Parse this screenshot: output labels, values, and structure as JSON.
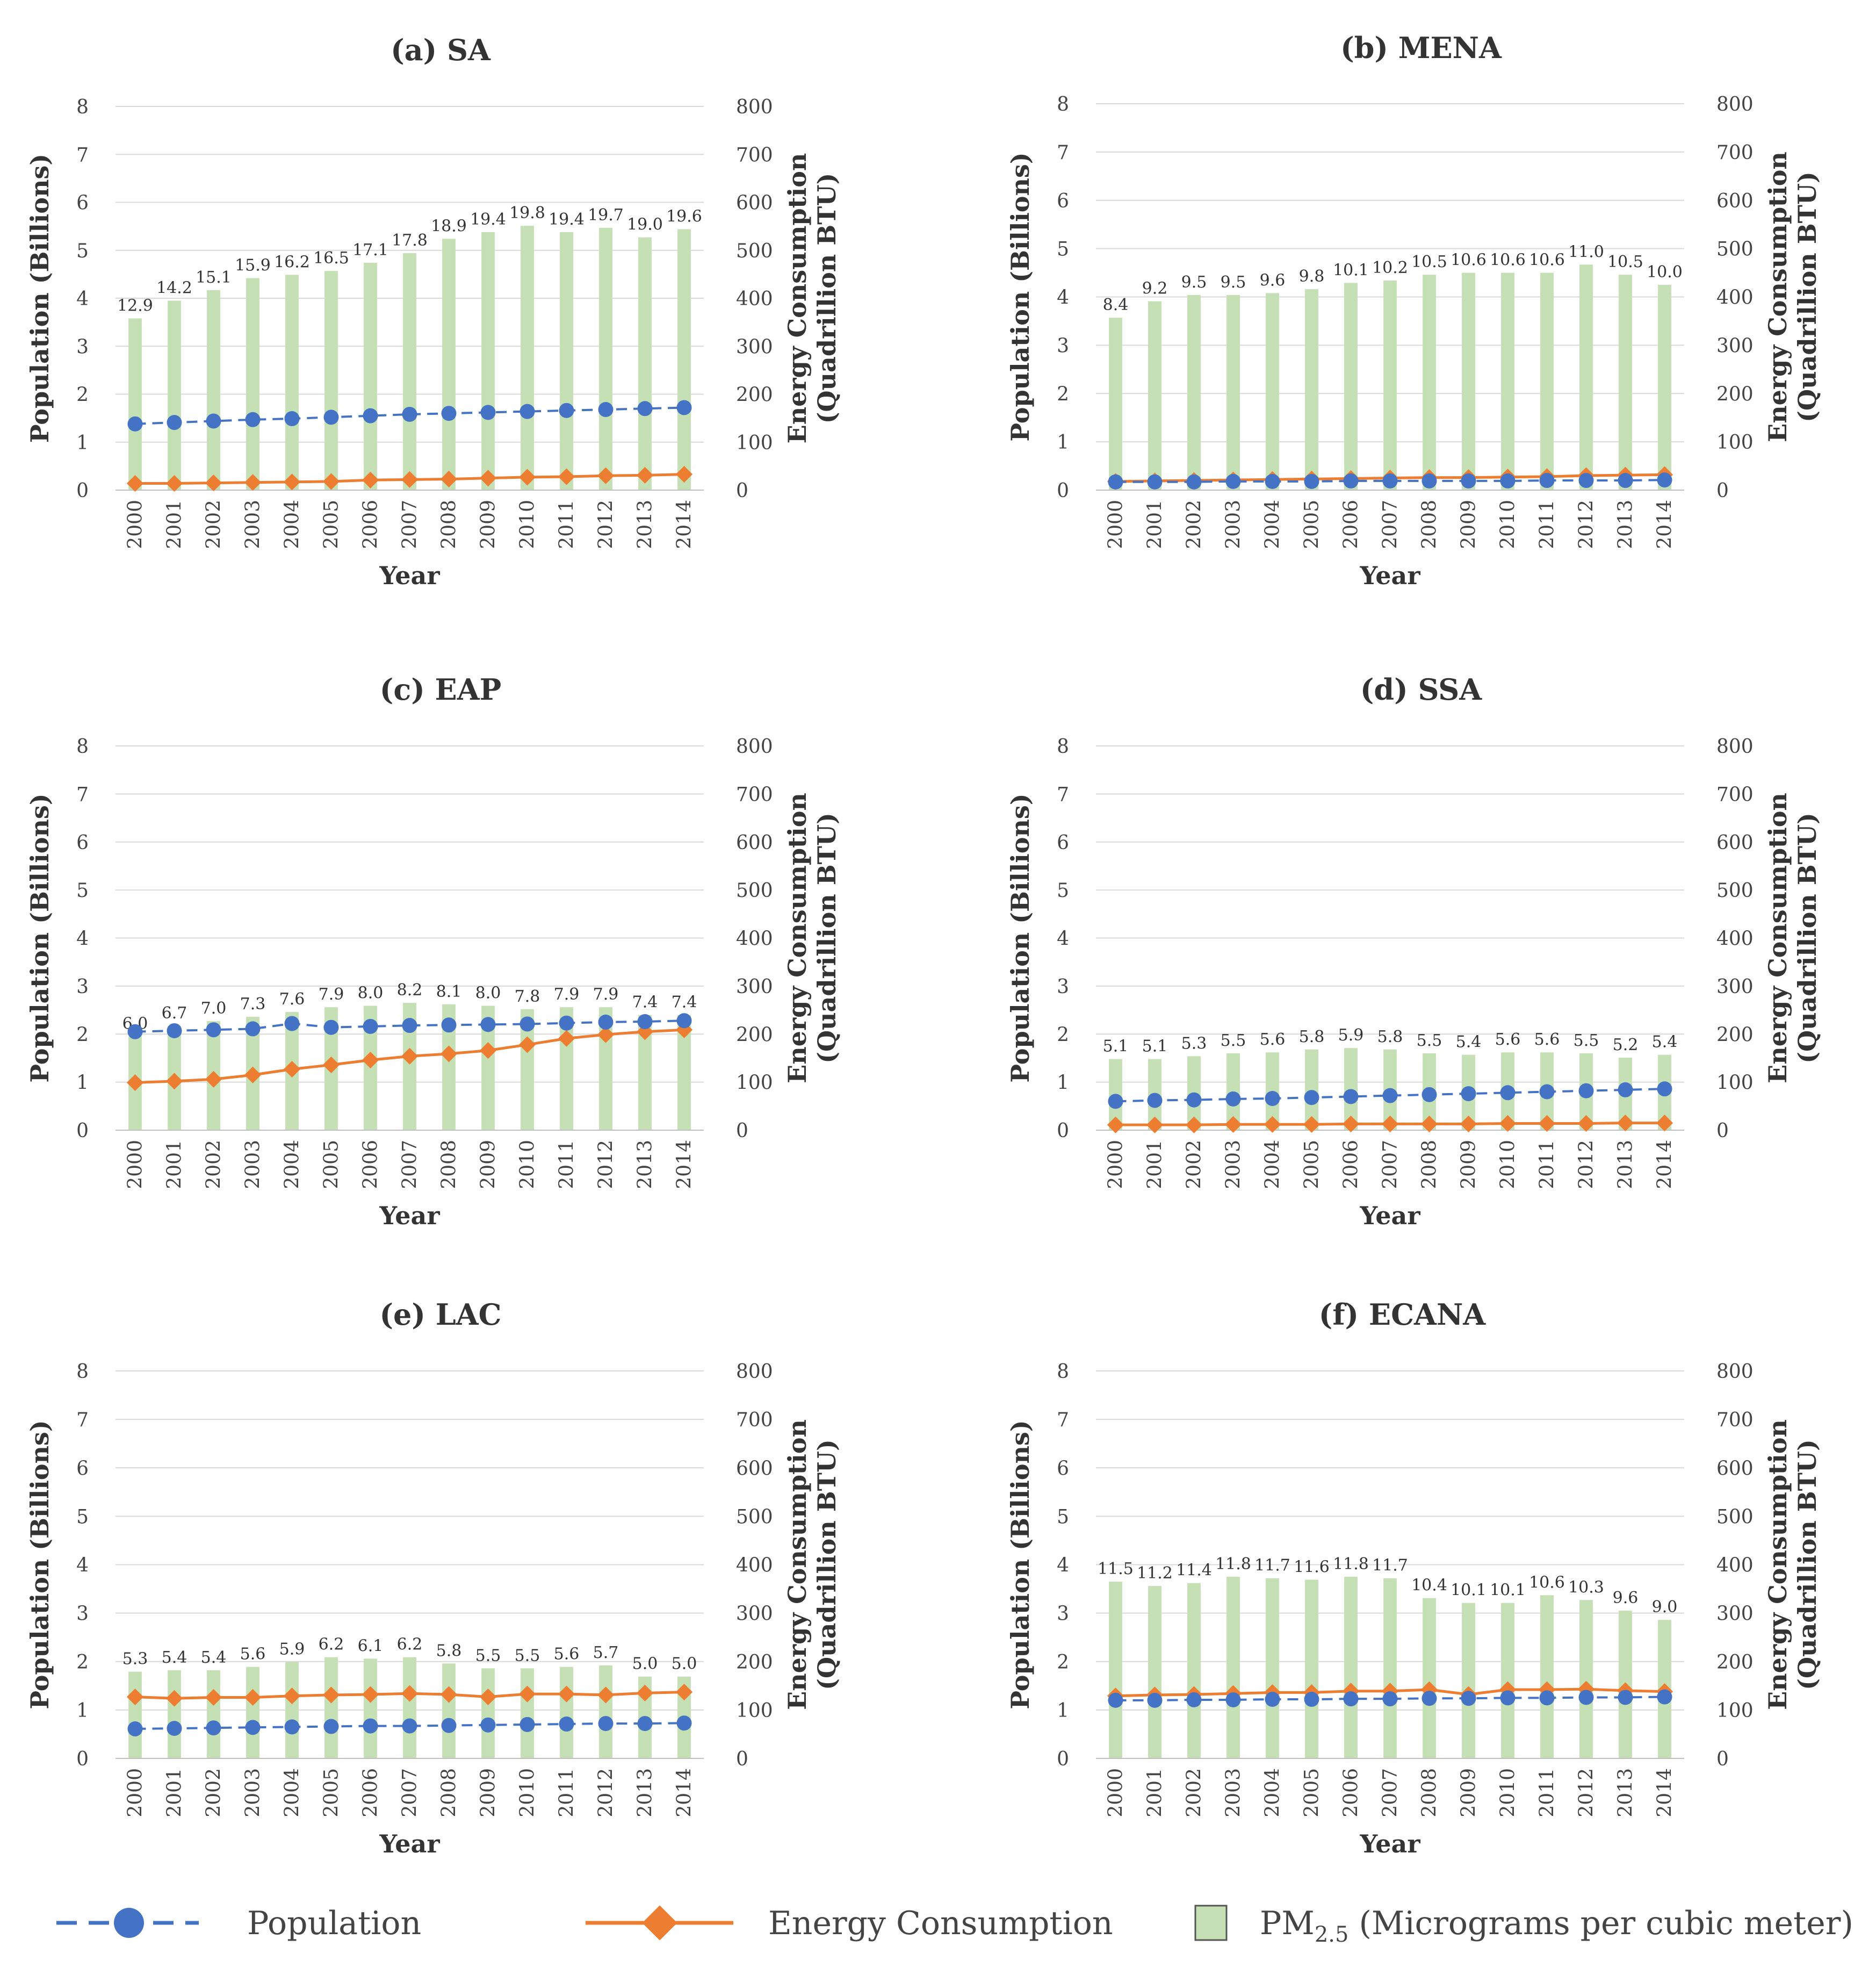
{
  "colors": {
    "population": "#4472C4",
    "energy": "#ED7D31",
    "pm25": "#C5E0B4"
  },
  "legend": {
    "population": "Population",
    "energy": "Energy Consumption",
    "pm_main": "PM",
    "pm_sub": "2.5",
    "pm_rest": " (Micrograms per cubic meter)"
  },
  "chart_data": [
    {
      "type": "bar",
      "title": "(a) SA",
      "xlabel": "Year",
      "ylabel": "Population (Billions)",
      "y2label_line1": "Energy Consumption",
      "y2label_line2": "(Quadrillion BTU)",
      "ylim": [
        0,
        8
      ],
      "y2lim": [
        0,
        800
      ],
      "yticks": [
        "0",
        "1",
        "2",
        "3",
        "4",
        "5",
        "6",
        "7",
        "8"
      ],
      "y2ticks": [
        "0",
        "100",
        "200",
        "300",
        "400",
        "500",
        "600",
        "700",
        "800"
      ],
      "categories": [
        "2000",
        "2001",
        "2002",
        "2003",
        "2004",
        "2005",
        "2006",
        "2007",
        "2008",
        "2009",
        "2010",
        "2011",
        "2012",
        "2013",
        "2014"
      ],
      "pm25_labels": [
        "12.9",
        "14.2",
        "15.1",
        "15.9",
        "16.2",
        "16.5",
        "17.1",
        "17.8",
        "18.9",
        "19.4",
        "19.8",
        "19.4",
        "19.7",
        "19.0",
        "19.6"
      ],
      "series": [
        {
          "name": "PM2.5",
          "values": [
            3.58,
            3.95,
            4.17,
            4.42,
            4.49,
            4.57,
            4.74,
            4.94,
            5.24,
            5.38,
            5.51,
            5.38,
            5.47,
            5.27,
            5.44
          ]
        },
        {
          "name": "Population",
          "values": [
            1.38,
            1.41,
            1.44,
            1.47,
            1.49,
            1.52,
            1.55,
            1.58,
            1.6,
            1.62,
            1.64,
            1.66,
            1.68,
            1.7,
            1.72
          ]
        },
        {
          "name": "Energy Consumption",
          "values": [
            14,
            14,
            15,
            16,
            17,
            18,
            21,
            22,
            23,
            25,
            27,
            28,
            30,
            31,
            33
          ]
        }
      ]
    },
    {
      "type": "bar",
      "title": "(b) MENA",
      "xlabel": "Year",
      "ylabel": "Population (Billions)",
      "y2label_line1": "Energy Consumption",
      "y2label_line2": "(Quadrillion BTU)",
      "ylim": [
        0,
        8
      ],
      "y2lim": [
        0,
        800
      ],
      "yticks": [
        "0",
        "1",
        "2",
        "3",
        "4",
        "5",
        "6",
        "7",
        "8"
      ],
      "y2ticks": [
        "0",
        "100",
        "200",
        "300",
        "400",
        "500",
        "600",
        "700",
        "800"
      ],
      "categories": [
        "2000",
        "2001",
        "2002",
        "2003",
        "2004",
        "2005",
        "2006",
        "2007",
        "2008",
        "2009",
        "2010",
        "2011",
        "2012",
        "2013",
        "2014"
      ],
      "pm25_labels": [
        "8.4",
        "9.2",
        "9.5",
        "9.5",
        "9.6",
        "9.8",
        "10.1",
        "10.2",
        "10.5",
        "10.6",
        "10.6",
        "10.6",
        "11.0",
        "10.5",
        "10.0"
      ],
      "series": [
        {
          "name": "PM2.5",
          "values": [
            3.57,
            3.91,
            4.04,
            4.04,
            4.08,
            4.16,
            4.29,
            4.34,
            4.46,
            4.5,
            4.5,
            4.5,
            4.67,
            4.46,
            4.25
          ]
        },
        {
          "name": "Population",
          "values": [
            0.17,
            0.17,
            0.17,
            0.18,
            0.18,
            0.18,
            0.19,
            0.19,
            0.19,
            0.19,
            0.19,
            0.2,
            0.2,
            0.2,
            0.21
          ]
        },
        {
          "name": "Energy Consumption",
          "values": [
            18,
            19,
            20,
            21,
            22,
            23,
            24,
            25,
            26,
            26,
            27,
            28,
            30,
            31,
            32
          ]
        }
      ]
    },
    {
      "type": "bar",
      "title": "(c) EAP",
      "xlabel": "Year",
      "ylabel": "Population (Billions)",
      "y2label_line1": "Energy Consumption",
      "y2label_line2": "(Quadrillion BTU)",
      "ylim": [
        0,
        8
      ],
      "y2lim": [
        0,
        800
      ],
      "yticks": [
        "0",
        "1",
        "2",
        "3",
        "4",
        "5",
        "6",
        "7",
        "8"
      ],
      "y2ticks": [
        "0",
        "100",
        "200",
        "300",
        "400",
        "500",
        "600",
        "700",
        "800"
      ],
      "categories": [
        "2000",
        "2001",
        "2002",
        "2003",
        "2004",
        "2005",
        "2006",
        "2007",
        "2008",
        "2009",
        "2010",
        "2011",
        "2012",
        "2013",
        "2014"
      ],
      "pm25_labels": [
        "6.0",
        "6.7",
        "7.0",
        "7.3",
        "7.6",
        "7.9",
        "8.0",
        "8.2",
        "8.1",
        "8.0",
        "7.8",
        "7.9",
        "7.9",
        "7.4",
        "7.4"
      ],
      "series": [
        {
          "name": "PM2.5",
          "values": [
            1.95,
            2.17,
            2.27,
            2.36,
            2.46,
            2.56,
            2.59,
            2.65,
            2.62,
            2.59,
            2.52,
            2.56,
            2.56,
            2.4,
            2.4
          ]
        },
        {
          "name": "Population",
          "values": [
            2.05,
            2.07,
            2.09,
            2.11,
            2.22,
            2.14,
            2.16,
            2.18,
            2.19,
            2.2,
            2.21,
            2.23,
            2.25,
            2.26,
            2.28
          ]
        },
        {
          "name": "Energy Consumption",
          "values": [
            99,
            102,
            106,
            115,
            127,
            136,
            146,
            154,
            159,
            166,
            178,
            191,
            199,
            205,
            209
          ]
        }
      ]
    },
    {
      "type": "bar",
      "title": "(d) SSA",
      "xlabel": "Year",
      "ylabel": "Population (Billions)",
      "y2label_line1": "Energy Consumption",
      "y2label_line2": "(Quadrillion BTU)",
      "ylim": [
        0,
        8
      ],
      "y2lim": [
        0,
        800
      ],
      "yticks": [
        "0",
        "1",
        "2",
        "3",
        "4",
        "5",
        "6",
        "7",
        "8"
      ],
      "y2ticks": [
        "0",
        "100",
        "200",
        "300",
        "400",
        "500",
        "600",
        "700",
        "800"
      ],
      "categories": [
        "2000",
        "2001",
        "2002",
        "2003",
        "2004",
        "2005",
        "2006",
        "2007",
        "2008",
        "2009",
        "2010",
        "2011",
        "2012",
        "2013",
        "2014"
      ],
      "pm25_labels": [
        "5.1",
        "5.1",
        "5.3",
        "5.5",
        "5.6",
        "5.8",
        "5.9",
        "5.8",
        "5.5",
        "5.4",
        "5.6",
        "5.6",
        "5.5",
        "5.2",
        "5.4"
      ],
      "series": [
        {
          "name": "PM2.5",
          "values": [
            1.48,
            1.48,
            1.54,
            1.6,
            1.62,
            1.68,
            1.71,
            1.68,
            1.6,
            1.57,
            1.62,
            1.62,
            1.6,
            1.51,
            1.57
          ]
        },
        {
          "name": "Population",
          "values": [
            0.6,
            0.62,
            0.63,
            0.65,
            0.66,
            0.68,
            0.7,
            0.72,
            0.74,
            0.76,
            0.78,
            0.8,
            0.82,
            0.84,
            0.86
          ]
        },
        {
          "name": "Energy Consumption",
          "values": [
            11,
            11,
            11,
            12,
            12,
            12,
            13,
            13,
            13,
            13,
            14,
            14,
            14,
            15,
            15
          ]
        }
      ]
    },
    {
      "type": "bar",
      "title": "(e) LAC",
      "xlabel": "Year",
      "ylabel": "Population (Billions)",
      "y2label_line1": "Energy Consumption",
      "y2label_line2": "(Quadrillion BTU)",
      "ylim": [
        0,
        8
      ],
      "y2lim": [
        0,
        800
      ],
      "yticks": [
        "0",
        "1",
        "2",
        "3",
        "4",
        "5",
        "6",
        "7",
        "8"
      ],
      "y2ticks": [
        "0",
        "100",
        "200",
        "300",
        "400",
        "500",
        "600",
        "700",
        "800"
      ],
      "categories": [
        "2000",
        "2001",
        "2002",
        "2003",
        "2004",
        "2005",
        "2006",
        "2007",
        "2008",
        "2009",
        "2010",
        "2011",
        "2012",
        "2013",
        "2014"
      ],
      "pm25_labels": [
        "5.3",
        "5.4",
        "5.4",
        "5.6",
        "5.9",
        "6.2",
        "6.1",
        "6.2",
        "5.8",
        "5.5",
        "5.5",
        "5.6",
        "5.7",
        "5.0",
        "5.0"
      ],
      "series": [
        {
          "name": "PM2.5",
          "values": [
            1.79,
            1.82,
            1.82,
            1.89,
            1.99,
            2.09,
            2.06,
            2.09,
            1.96,
            1.86,
            1.86,
            1.89,
            1.92,
            1.69,
            1.69
          ]
        },
        {
          "name": "Population",
          "values": [
            0.61,
            0.62,
            0.63,
            0.64,
            0.65,
            0.66,
            0.67,
            0.67,
            0.68,
            0.69,
            0.7,
            0.71,
            0.72,
            0.72,
            0.73
          ]
        },
        {
          "name": "Energy Consumption",
          "values": [
            127,
            124,
            126,
            126,
            129,
            131,
            132,
            134,
            132,
            127,
            133,
            133,
            131,
            135,
            137
          ]
        }
      ]
    },
    {
      "type": "bar",
      "title": "(f) ECANA",
      "xlabel": "Year",
      "ylabel": "Population (Billions)",
      "y2label_line1": "Energy Consumption",
      "y2label_line2": "(Quadrillion BTU)",
      "ylim": [
        0,
        8
      ],
      "y2lim": [
        0,
        800
      ],
      "yticks": [
        "0",
        "1",
        "2",
        "3",
        "4",
        "5",
        "6",
        "7",
        "8"
      ],
      "y2ticks": [
        "0",
        "100",
        "200",
        "300",
        "400",
        "500",
        "600",
        "700",
        "800"
      ],
      "categories": [
        "2000",
        "2001",
        "2002",
        "2003",
        "2004",
        "2005",
        "2006",
        "2007",
        "2008",
        "2009",
        "2010",
        "2011",
        "2012",
        "2013",
        "2014"
      ],
      "pm25_labels": [
        "11.5",
        "11.2",
        "11.4",
        "11.8",
        "11.7",
        "11.6",
        "11.8",
        "11.7",
        "10.4",
        "10.1",
        "10.1",
        "10.6",
        "10.3",
        "9.6",
        "9.0"
      ],
      "series": [
        {
          "name": "PM2.5",
          "values": [
            3.65,
            3.56,
            3.62,
            3.75,
            3.72,
            3.69,
            3.75,
            3.72,
            3.31,
            3.21,
            3.21,
            3.37,
            3.27,
            3.05,
            2.86
          ]
        },
        {
          "name": "Population",
          "values": [
            1.2,
            1.2,
            1.21,
            1.21,
            1.22,
            1.22,
            1.23,
            1.23,
            1.24,
            1.24,
            1.25,
            1.25,
            1.26,
            1.26,
            1.27
          ]
        },
        {
          "name": "Energy Consumption",
          "values": [
            129,
            131,
            132,
            134,
            136,
            136,
            139,
            139,
            142,
            132,
            142,
            142,
            143,
            140,
            138
          ]
        }
      ]
    }
  ]
}
